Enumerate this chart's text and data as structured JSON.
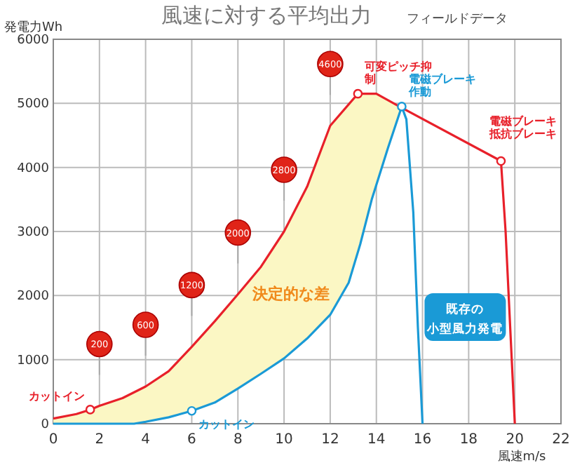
{
  "chart_data": {
    "type": "line",
    "title": "風速に対する平均出力",
    "subtitle": "フィールドデータ",
    "xlabel": "風速m/s",
    "ylabel": "発電力Wh",
    "xlim": [
      0,
      22
    ],
    "ylim": [
      0,
      6000
    ],
    "xticks": [
      0,
      2,
      4,
      6,
      8,
      10,
      12,
      14,
      16,
      18,
      20,
      22
    ],
    "yticks": [
      0,
      1000,
      2000,
      3000,
      4000,
      5000,
      6000
    ],
    "grid": true,
    "series": [
      {
        "color": "#e8202a",
        "x": [
          0,
          1,
          1.6,
          2,
          3,
          4,
          5,
          6,
          7,
          8,
          9,
          10,
          11,
          12,
          13.2,
          14,
          15,
          19.4,
          19.6,
          19.8,
          20
        ],
        "values": [
          80,
          150,
          220,
          280,
          400,
          580,
          820,
          1200,
          1600,
          2020,
          2450,
          3000,
          3700,
          4650,
          5150,
          5150,
          4950,
          4100,
          3000,
          1500,
          0
        ],
        "value_labels": [
          null,
          null,
          "カットイン",
          null,
          null,
          null,
          null,
          null,
          null,
          null,
          null,
          null,
          null,
          null,
          "可変ピッチ抑制",
          null,
          null,
          "電磁ブレーキ抵抗ブレーキ",
          null,
          null,
          null
        ]
      },
      {
        "color": "#1a9ad6",
        "x": [
          0,
          3.5,
          4,
          5,
          6,
          7,
          8,
          9,
          10,
          11,
          12,
          12.8,
          13.3,
          13.8,
          14.5,
          15.1,
          15.3,
          15.6,
          15.8,
          16
        ],
        "values": [
          0,
          0,
          30,
          100,
          200,
          330,
          550,
          780,
          1020,
          1330,
          1700,
          2200,
          2800,
          3500,
          4300,
          4950,
          4750,
          3300,
          1500,
          0
        ],
        "value_labels": [
          null,
          null,
          null,
          null,
          "カットイン",
          null,
          null,
          null,
          null,
          null,
          null,
          null,
          null,
          null,
          null,
          "電磁ブレーキ作動",
          null,
          null,
          null,
          null
        ]
      }
    ],
    "annotations": [
      "200",
      "600",
      "1200",
      "2000",
      "2800",
      "4600",
      "決定的な差",
      "既存の",
      "小型風力発電"
    ]
  }
}
